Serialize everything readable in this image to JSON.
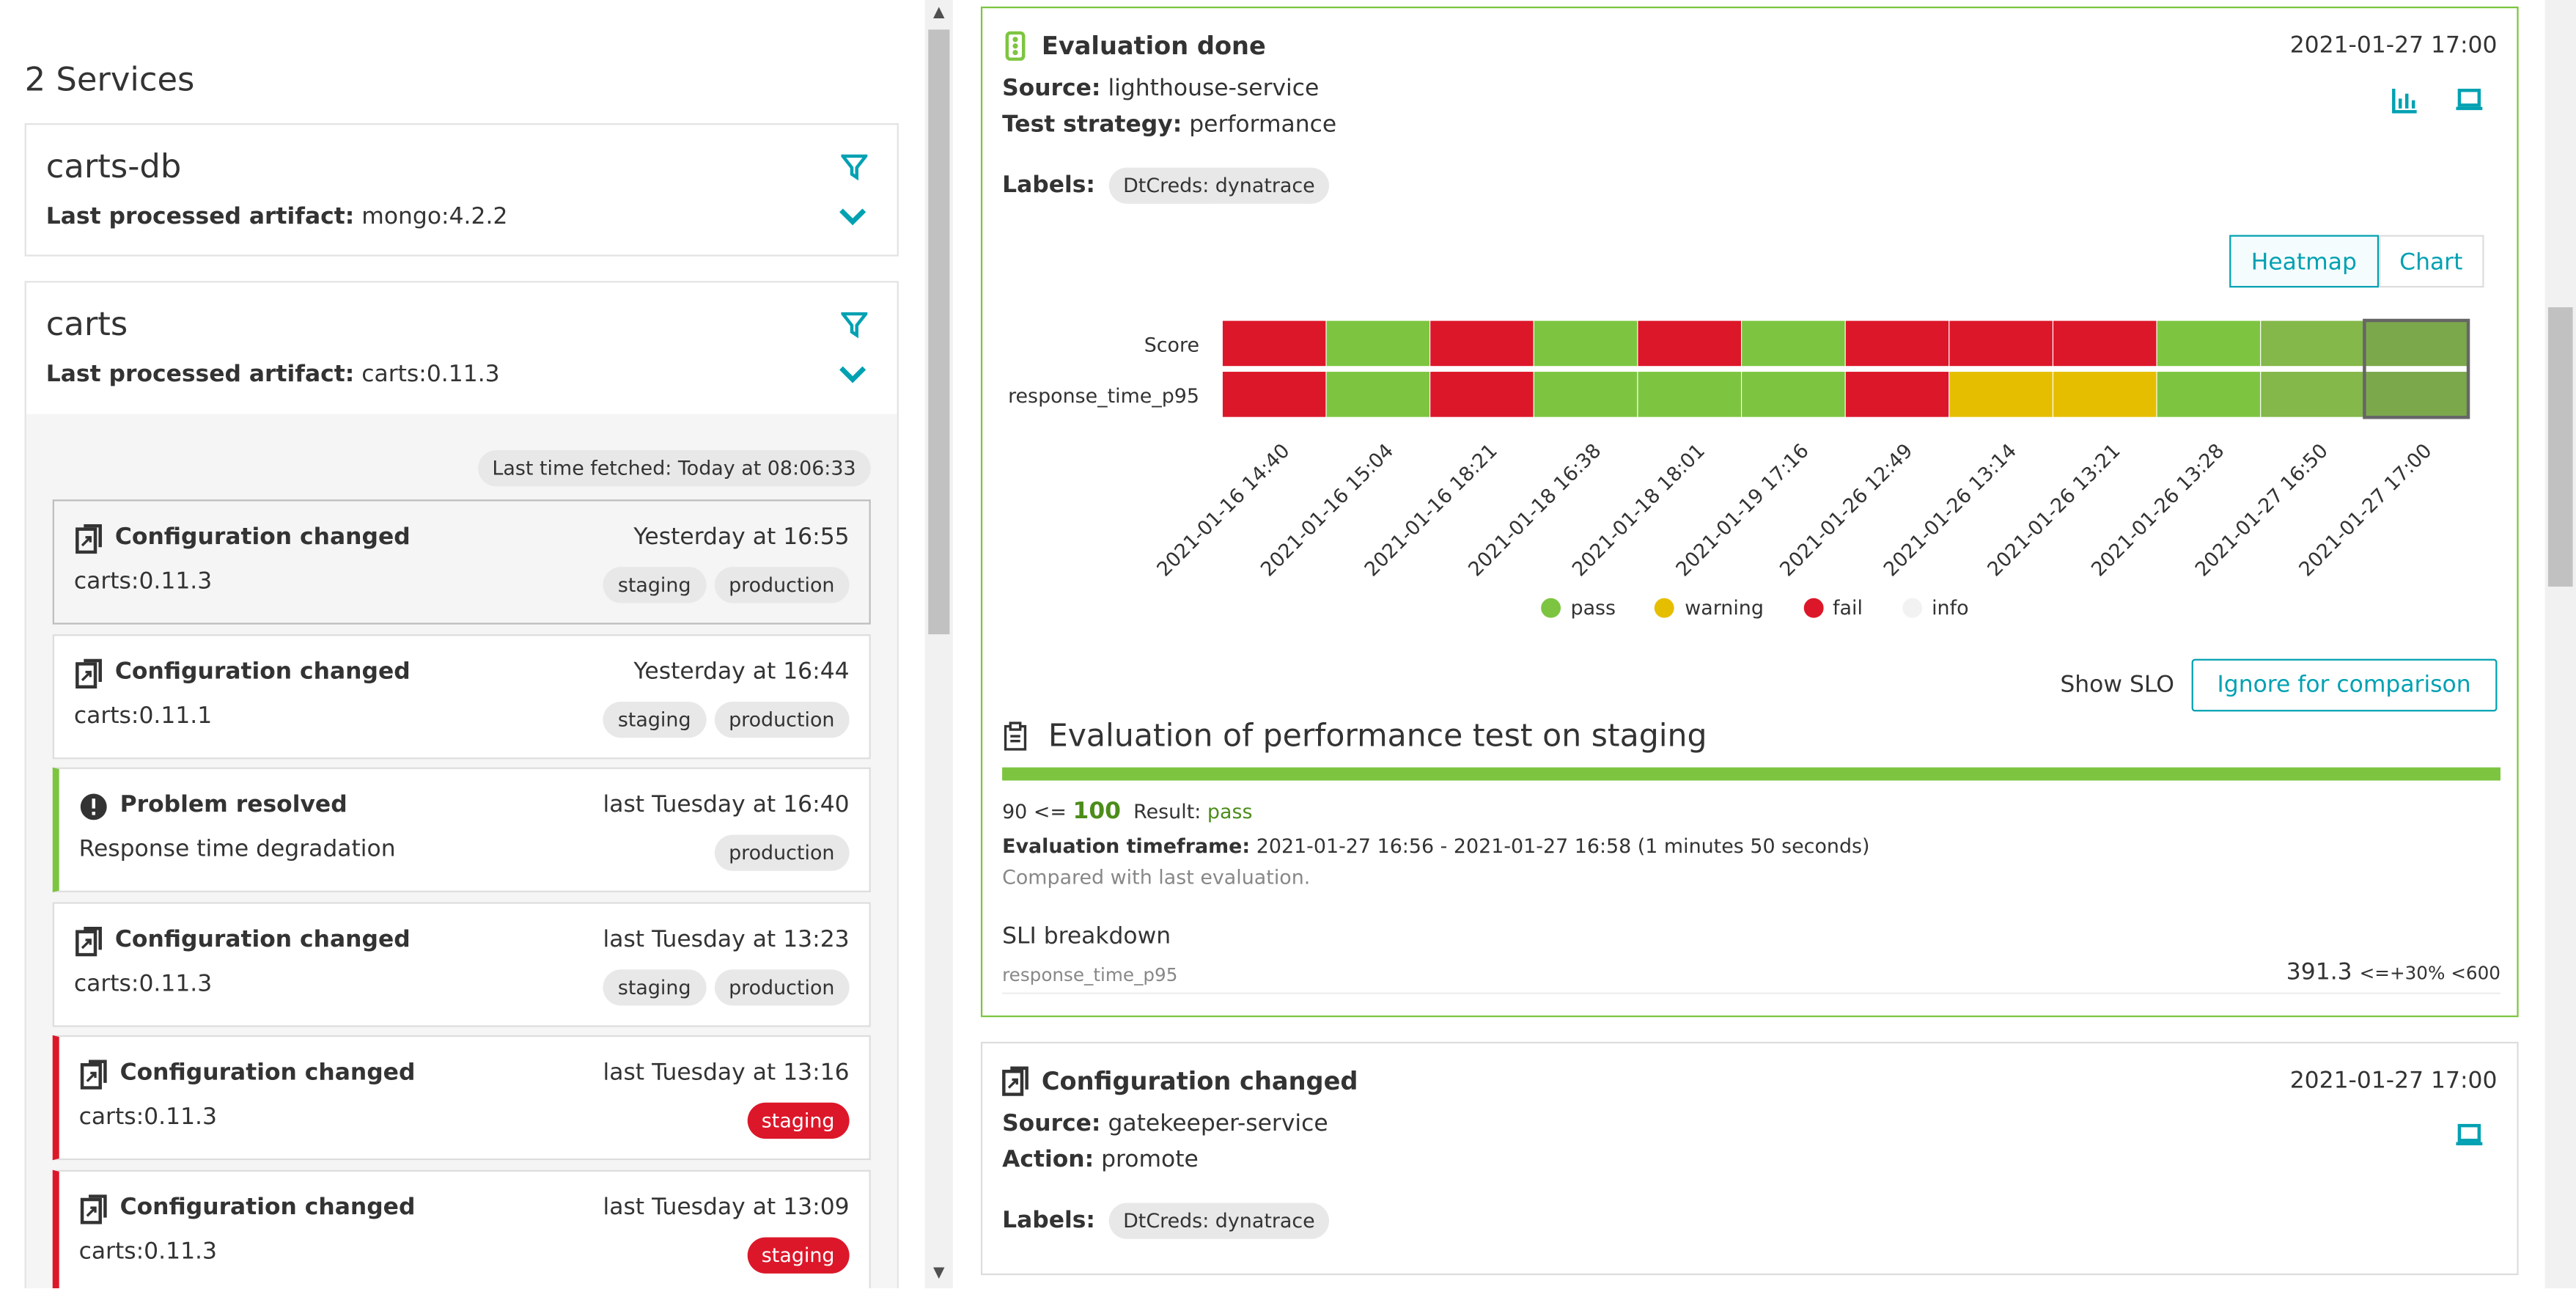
{
  "services": {
    "title": "2 Services",
    "list": [
      {
        "name": "carts-db",
        "artifact_label": "Last processed artifact:",
        "artifact": "mongo:4.2.2"
      },
      {
        "name": "carts",
        "artifact_label": "Last processed artifact:",
        "artifact": "carts:0.11.3"
      }
    ]
  },
  "fetched": "Last time fetched: Today at 08:06:33",
  "events": [
    {
      "title": "Configuration changed",
      "time": "Yesterday at 16:55",
      "sub": "carts:0.11.3",
      "tags": [
        "staging",
        "production"
      ],
      "icon": "config-changed-icon"
    },
    {
      "title": "Configuration changed",
      "time": "Yesterday at 16:44",
      "sub": "carts:0.11.1",
      "tags": [
        "staging",
        "production"
      ],
      "icon": "config-changed-icon"
    },
    {
      "title": "Problem resolved",
      "time": "last Tuesday at 16:40",
      "sub": "Response time degradation",
      "tags": [
        "production"
      ],
      "icon": "alert-icon"
    },
    {
      "title": "Configuration changed",
      "time": "last Tuesday at 13:23",
      "sub": "carts:0.11.3",
      "tags": [
        "staging",
        "production"
      ],
      "icon": "config-changed-icon"
    },
    {
      "title": "Configuration changed",
      "time": "last Tuesday at 13:16",
      "sub": "carts:0.11.3",
      "tags": [
        "staging"
      ],
      "icon": "config-changed-icon"
    },
    {
      "title": "Configuration changed",
      "time": "last Tuesday at 13:09",
      "sub": "carts:0.11.3",
      "tags": [
        "staging"
      ],
      "icon": "config-changed-icon"
    }
  ],
  "eval_card": {
    "title": "Evaluation done",
    "date": "2021-01-27 17:00",
    "source_label": "Source:",
    "source": "lighthouse-service",
    "strategy_label": "Test strategy:",
    "strategy": "performance",
    "labels_label": "Labels:",
    "label": "DtCreds: dynatrace",
    "toggle": [
      "Heatmap",
      "Chart"
    ],
    "show_slo": "Show SLO",
    "ignore": "Ignore for comparison",
    "eval_title": "Evaluation of performance test on staging",
    "score_prefix": "90 <=",
    "score": "100",
    "result_label": "Result:",
    "result": "pass",
    "tf_label": "Evaluation timeframe:",
    "tf": "2021-01-27 16:56 - 2021-01-27 16:58 (1 minutes 50 seconds)",
    "compared": "Compared with last evaluation.",
    "sli_title": "SLI breakdown",
    "sli_name": "response_time_p95",
    "sli_value": "391.3",
    "sli_criteria": "<=+30% <600"
  },
  "chart_data": {
    "type": "heatmap",
    "rows": [
      "Score",
      "response_time_p95"
    ],
    "columns": [
      "2021-01-16 14:40",
      "2021-01-16 15:04",
      "2021-01-16 18:21",
      "2021-01-18 16:38",
      "2021-01-18 18:01",
      "2021-01-19 17:16",
      "2021-01-26 12:49",
      "2021-01-26 13:14",
      "2021-01-26 13:21",
      "2021-01-26 13:28",
      "2021-01-27 16:50",
      "2021-01-27 17:00"
    ],
    "values": [
      [
        "fail",
        "pass",
        "fail",
        "pass",
        "fail",
        "pass",
        "fail",
        "fail",
        "fail",
        "pass",
        "pass",
        "pass"
      ],
      [
        "fail",
        "pass",
        "fail",
        "pass",
        "pass",
        "pass",
        "fail",
        "warning",
        "warning",
        "pass",
        "pass",
        "pass"
      ]
    ],
    "legend": [
      "pass",
      "warning",
      "fail",
      "info"
    ],
    "colors": {
      "pass": "#7dc540",
      "warning": "#e6be00",
      "fail": "#dc172a",
      "info": "#f2f2f2"
    }
  },
  "config_card": {
    "title": "Configuration changed",
    "date": "2021-01-27 17:00",
    "source_label": "Source:",
    "source": "gatekeeper-service",
    "action_label": "Action:",
    "action": "promote",
    "labels_label": "Labels:",
    "label": "DtCreds: dynatrace"
  }
}
